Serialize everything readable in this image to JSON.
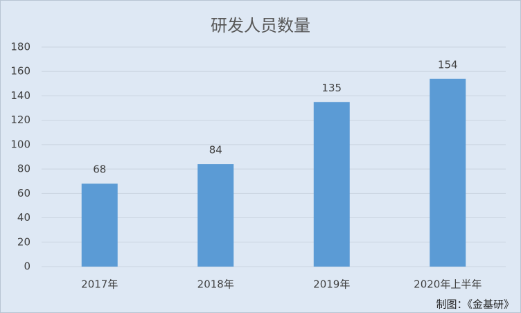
{
  "chart_data": {
    "type": "bar",
    "title": "研发人员数量",
    "categories": [
      "2017年",
      "2018年",
      "2019年",
      "2020年上半年"
    ],
    "values": [
      68,
      84,
      135,
      154
    ],
    "color": "#5b9bd5",
    "ylim": [
      0,
      180
    ],
    "yticks": [
      0,
      20,
      40,
      60,
      80,
      100,
      120,
      140,
      160,
      180
    ],
    "grid": true,
    "note": "制图：《金基研》"
  }
}
